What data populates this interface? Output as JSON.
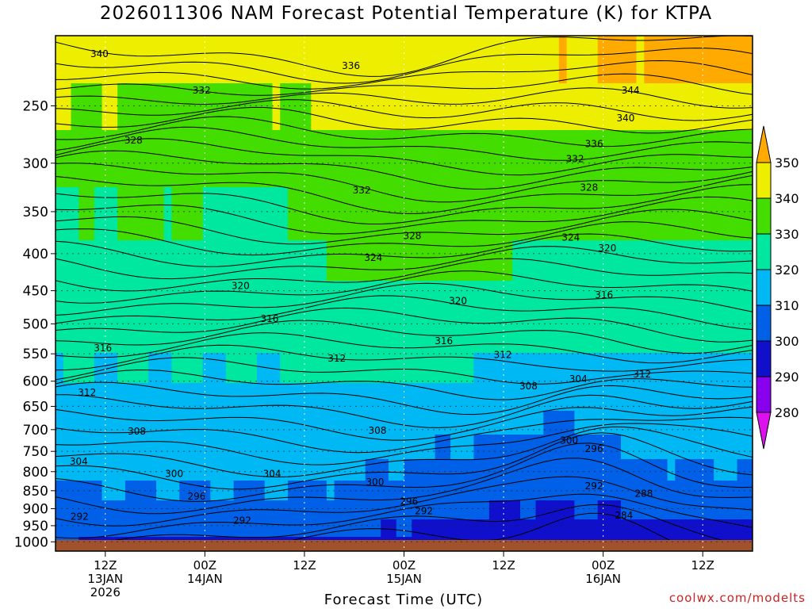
{
  "title": "2026011306 NAM Forecast Potential Temperature (K) for KTPA",
  "xlabel": "Forecast Time (UTC)",
  "credit": "coolwx.com/modelts",
  "chart_data": {
    "type": "time-height contour",
    "y_ticks": [
      250,
      300,
      350,
      400,
      450,
      500,
      550,
      600,
      650,
      700,
      750,
      800,
      850,
      900,
      950,
      1000
    ],
    "y_unit": "hPa (pressure, reversed log axis)",
    "x_ticks": [
      {
        "hour": 6,
        "lines": [
          "12Z",
          "13JAN",
          "2026"
        ]
      },
      {
        "hour": 18,
        "lines": [
          "00Z",
          "14JAN"
        ]
      },
      {
        "hour": 30,
        "lines": [
          "12Z"
        ]
      },
      {
        "hour": 42,
        "lines": [
          "00Z",
          "15JAN"
        ]
      },
      {
        "hour": 54,
        "lines": [
          "12Z"
        ]
      },
      {
        "hour": 66,
        "lines": [
          "00Z",
          "16JAN"
        ]
      },
      {
        "hour": 78,
        "lines": [
          "12Z"
        ]
      }
    ],
    "x_range_hours": [
      0,
      84
    ],
    "y_range_hpa": [
      200,
      1030
    ],
    "colorbar": {
      "levels": [
        280,
        290,
        300,
        310,
        320,
        330,
        340,
        350
      ],
      "colors": [
        "#dd11ee",
        "#8800ee",
        "#1010cc",
        "#0060e8",
        "#00b8f4",
        "#00e8a0",
        "#44dd00",
        "#eeee00",
        "#ffaa00"
      ]
    },
    "contour_labels": [
      {
        "value": "340",
        "hour": 5.3,
        "p": 212
      },
      {
        "value": "336",
        "hour": 35.6,
        "p": 220
      },
      {
        "value": "332",
        "hour": 17.6,
        "p": 238
      },
      {
        "value": "344",
        "hour": 69.3,
        "p": 238
      },
      {
        "value": "340",
        "hour": 68.7,
        "p": 260
      },
      {
        "value": "328",
        "hour": 9.4,
        "p": 279
      },
      {
        "value": "336",
        "hour": 64.9,
        "p": 282
      },
      {
        "value": "332",
        "hour": 62.6,
        "p": 296
      },
      {
        "value": "332",
        "hour": 36.9,
        "p": 327
      },
      {
        "value": "328",
        "hour": 64.3,
        "p": 324
      },
      {
        "value": "328",
        "hour": 43.0,
        "p": 378
      },
      {
        "value": "324",
        "hour": 62.1,
        "p": 380
      },
      {
        "value": "324",
        "hour": 38.3,
        "p": 405
      },
      {
        "value": "320",
        "hour": 66.5,
        "p": 393
      },
      {
        "value": "320",
        "hour": 22.3,
        "p": 443
      },
      {
        "value": "320",
        "hour": 48.5,
        "p": 465
      },
      {
        "value": "316",
        "hour": 66.1,
        "p": 456
      },
      {
        "value": "316",
        "hour": 25.8,
        "p": 492
      },
      {
        "value": "316",
        "hour": 5.7,
        "p": 540
      },
      {
        "value": "316",
        "hour": 46.8,
        "p": 528
      },
      {
        "value": "312",
        "hour": 33.9,
        "p": 558
      },
      {
        "value": "312",
        "hour": 53.9,
        "p": 552
      },
      {
        "value": "312",
        "hour": 70.7,
        "p": 587
      },
      {
        "value": "312",
        "hour": 3.8,
        "p": 622
      },
      {
        "value": "308",
        "hour": 57.0,
        "p": 610
      },
      {
        "value": "304",
        "hour": 63.0,
        "p": 596
      },
      {
        "value": "308",
        "hour": 9.8,
        "p": 704
      },
      {
        "value": "308",
        "hour": 38.8,
        "p": 702
      },
      {
        "value": "300",
        "hour": 61.9,
        "p": 725
      },
      {
        "value": "296",
        "hour": 64.9,
        "p": 744
      },
      {
        "value": "304",
        "hour": 2.8,
        "p": 775
      },
      {
        "value": "300",
        "hour": 14.3,
        "p": 805
      },
      {
        "value": "304",
        "hour": 26.1,
        "p": 805
      },
      {
        "value": "300",
        "hour": 38.5,
        "p": 827
      },
      {
        "value": "292",
        "hour": 64.9,
        "p": 838
      },
      {
        "value": "288",
        "hour": 70.9,
        "p": 858
      },
      {
        "value": "296",
        "hour": 17.0,
        "p": 866
      },
      {
        "value": "296",
        "hour": 42.6,
        "p": 880
      },
      {
        "value": "292",
        "hour": 44.4,
        "p": 907
      },
      {
        "value": "284",
        "hour": 68.5,
        "p": 920
      },
      {
        "value": "292",
        "hour": 2.9,
        "p": 923
      },
      {
        "value": "292",
        "hour": 22.5,
        "p": 935
      }
    ]
  }
}
